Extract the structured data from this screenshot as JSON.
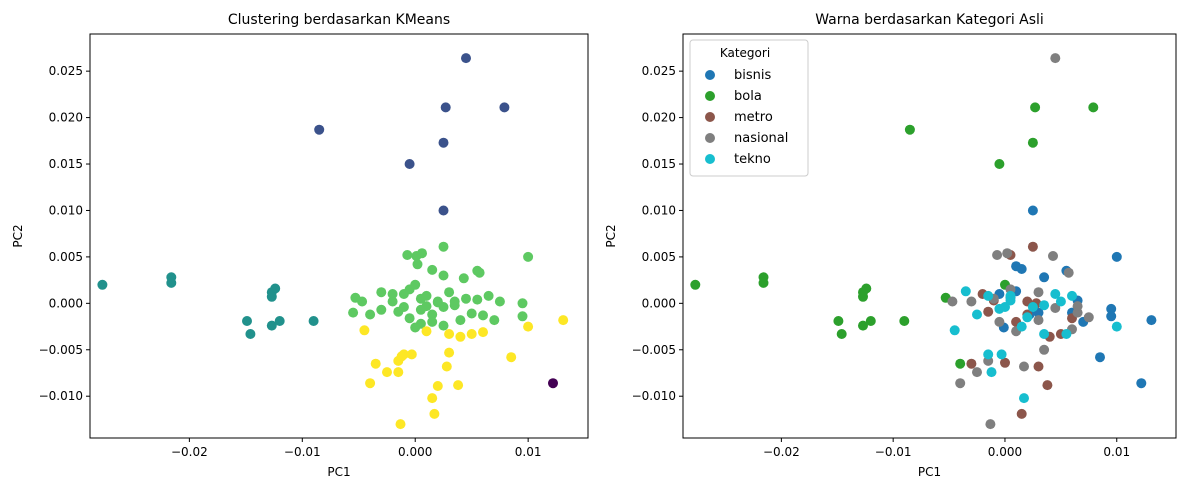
{
  "chart_data": [
    {
      "type": "scatter",
      "title": "Clustering berdasarkan KMeans",
      "xlabel": "PC1",
      "ylabel": "PC2",
      "xlim": [
        -0.0288,
        0.0153
      ],
      "ylim": [
        -0.0145,
        0.029
      ],
      "xticks": [
        -0.02,
        -0.01,
        0.0,
        0.01
      ],
      "xtick_labels": [
        "−0.02",
        "−0.01",
        "0.000",
        "0.01"
      ],
      "yticks": [
        -0.01,
        -0.005,
        0.0,
        0.005,
        0.01,
        0.015,
        0.02,
        0.025
      ],
      "ytick_labels": [
        "−0.010",
        "−0.005",
        "0.000",
        "0.005",
        "0.010",
        "0.015",
        "0.020",
        "0.025"
      ],
      "grid": false,
      "series": [
        {
          "color": "#440154",
          "x": [
            0.0122
          ],
          "y": [
            -0.0086
          ]
        },
        {
          "color": "#3b528b",
          "x": [
            0.0045,
            0.0027,
            0.0079,
            -0.0085,
            0.0025,
            -0.0005,
            0.0025
          ],
          "y": [
            0.0264,
            0.0211,
            0.0211,
            0.0187,
            0.0173,
            0.015,
            0.01
          ]
        },
        {
          "color": "#21918c",
          "x": [
            -0.0277,
            -0.0216,
            -0.0216,
            -0.0124,
            -0.0127,
            -0.0127,
            -0.0149,
            -0.0146,
            -0.0127,
            -0.012,
            -0.009
          ],
          "y": [
            0.002,
            0.0028,
            0.0022,
            0.0016,
            0.0012,
            0.0007,
            -0.0019,
            -0.0033,
            -0.0024,
            -0.0019,
            -0.0019
          ]
        },
        {
          "color": "#5ec962",
          "x": [
            -0.0007,
            0.0001,
            0.0006,
            0.0025,
            0.0002,
            0.0015,
            0.0025,
            0.0043,
            0.0055,
            0.0057,
            0.01,
            -0.0053,
            -0.0047,
            -0.003,
            -0.002,
            -0.001,
            -0.0005,
            0.0,
            0.0005,
            0.001,
            0.002,
            0.003,
            0.0045,
            0.0055,
            0.0065,
            0.0075,
            0.0095,
            -0.0055,
            -0.004,
            -0.003,
            -0.0015,
            -0.0005,
            0.0005,
            0.0015,
            0.0025,
            0.0035,
            0.005,
            0.006,
            0.007,
            0.0095,
            -0.002,
            -0.001,
            0.001,
            0.002,
            0.0035,
            0.0005,
            0.0015,
            0.0,
            0.0025,
            0.004
          ],
          "y": [
            0.0052,
            0.0051,
            0.0054,
            0.0061,
            0.0042,
            0.0036,
            0.003,
            0.0027,
            0.0035,
            0.0033,
            0.005,
            0.0006,
            0.0002,
            0.0012,
            0.001,
            0.001,
            0.0015,
            0.002,
            0.0005,
            0.0008,
            0.0002,
            0.0012,
            0.0005,
            0.0004,
            0.0008,
            0.0002,
            0.0,
            -0.001,
            -0.0012,
            -0.0007,
            -0.0009,
            -0.0016,
            -0.0007,
            -0.0012,
            -0.0004,
            -0.0002,
            -0.0011,
            -0.0013,
            -0.0018,
            -0.0014,
            0.0002,
            -0.0004,
            -0.0003,
            0.0001,
            0.0002,
            -0.0022,
            -0.002,
            -0.0026,
            -0.0024,
            -0.0018
          ]
        },
        {
          "color": "#fde725",
          "x": [
            -0.0045,
            -0.0035,
            -0.004,
            -0.0025,
            -0.0015,
            -0.0015,
            -0.001,
            -0.0012,
            -0.0003,
            0.001,
            0.003,
            0.004,
            0.005,
            0.006,
            0.01,
            0.0131,
            0.0085,
            0.003,
            0.0038,
            0.0028,
            0.002,
            0.0015,
            0.0017,
            -0.0013
          ],
          "y": [
            -0.0029,
            -0.0065,
            -0.0086,
            -0.0074,
            -0.0074,
            -0.0062,
            -0.0055,
            -0.0057,
            -0.0055,
            -0.003,
            -0.0033,
            -0.0036,
            -0.0033,
            -0.0031,
            -0.0025,
            -0.0018,
            -0.0058,
            -0.0053,
            -0.0088,
            -0.0068,
            -0.0089,
            -0.0102,
            -0.0119,
            -0.013
          ]
        }
      ]
    },
    {
      "type": "scatter",
      "title": "Warna berdasarkan Kategori Asli",
      "xlabel": "PC1",
      "ylabel": "PC2",
      "xlim": [
        -0.0288,
        0.0153
      ],
      "ylim": [
        -0.0145,
        0.029
      ],
      "xticks": [
        -0.02,
        -0.01,
        0.0,
        0.01
      ],
      "xtick_labels": [
        "−0.02",
        "−0.01",
        "0.000",
        "0.01"
      ],
      "yticks": [
        -0.01,
        -0.005,
        0.0,
        0.005,
        0.01,
        0.015,
        0.02,
        0.025
      ],
      "ytick_labels": [
        "−0.010",
        "−0.005",
        "0.000",
        "0.005",
        "0.010",
        "0.015",
        "0.020",
        "0.025"
      ],
      "grid": false,
      "legend_title": "Kategori",
      "legend_position": "top-left",
      "series": [
        {
          "name": "bisnis",
          "color": "#1f77b4",
          "x": [
            0.0025,
            0.001,
            0.0015,
            0.0035,
            0.0055,
            0.01,
            0.0095,
            0.0095,
            0.0131,
            0.0122,
            0.0085,
            0.0065,
            0.007,
            0.006,
            0.003,
            -0.0005,
            0.001,
            0.0005,
            -0.0001,
            0.0022
          ],
          "y": [
            0.01,
            0.004,
            0.0037,
            0.0028,
            0.0035,
            0.005,
            -0.0006,
            -0.0014,
            -0.0018,
            -0.0086,
            -0.0058,
            0.0003,
            -0.002,
            -0.001,
            -0.001,
            0.001,
            0.0013,
            0.0006,
            -0.0026,
            -0.0012
          ]
        },
        {
          "name": "bola",
          "color": "#2ca02c",
          "x": [
            0.0027,
            0.0079,
            -0.0085,
            0.0025,
            -0.0005,
            -0.0277,
            -0.0216,
            -0.0216,
            -0.0124,
            -0.0127,
            -0.0127,
            -0.0149,
            -0.0146,
            -0.0127,
            -0.012,
            -0.009,
            -0.0053,
            -0.004,
            0.0
          ],
          "y": [
            0.0211,
            0.0211,
            0.0187,
            0.0173,
            0.015,
            0.002,
            0.0028,
            0.0022,
            0.0016,
            0.0012,
            0.0007,
            -0.0019,
            -0.0033,
            -0.0024,
            -0.0019,
            -0.0019,
            0.0006,
            -0.0065,
            0.002
          ]
        },
        {
          "name": "metro",
          "color": "#8c564b",
          "x": [
            0.0025,
            0.0005,
            -0.002,
            -0.0015,
            -0.001,
            0.002,
            0.003,
            0.004,
            0.005,
            0.006,
            0.002,
            0.0038,
            0.0015,
            -0.003,
            0.001,
            0.0,
            0.0028
          ],
          "y": [
            0.0061,
            0.0052,
            0.001,
            -0.0009,
            0.0003,
            0.0002,
            -0.0068,
            -0.0036,
            -0.0033,
            -0.0016,
            -0.0012,
            -0.0088,
            -0.0119,
            -0.0065,
            -0.002,
            -0.0064,
            0.0
          ],
          "note_ignore": ""
        },
        {
          "name": "nasional",
          "color": "#7f7f7f",
          "x": [
            0.0045,
            -0.0007,
            0.0002,
            0.0043,
            0.0057,
            0.0065,
            -0.0047,
            -0.003,
            -0.001,
            0.0005,
            0.003,
            0.0045,
            0.0065,
            0.0075,
            -0.004,
            -0.0025,
            -0.0013,
            0.0017,
            0.006,
            0.0035,
            -0.0015,
            0.001,
            0.003,
            -0.0005
          ],
          "y": [
            0.0264,
            0.0052,
            0.0054,
            0.0051,
            0.0033,
            -0.001,
            0.0002,
            0.0002,
            0.0005,
            0.0015,
            0.0012,
            -0.0005,
            -0.0003,
            -0.0015,
            -0.0086,
            -0.0074,
            -0.013,
            -0.0068,
            -0.0028,
            -0.005,
            -0.0062,
            -0.003,
            -0.0018,
            -0.002
          ]
        },
        {
          "name": "tekno",
          "color": "#17becf",
          "x": [
            -0.0045,
            -0.0035,
            -0.0025,
            -0.0015,
            0.0,
            0.0005,
            0.0015,
            0.0025,
            0.0035,
            0.0045,
            0.0055,
            0.006,
            0.01,
            -0.0012,
            -0.0003,
            0.0017,
            0.0005,
            -0.0015,
            -0.0005,
            0.0035,
            0.005,
            0.002
          ],
          "y": [
            -0.0029,
            0.0013,
            -0.0012,
            0.0008,
            -0.0004,
            0.0008,
            -0.0025,
            -0.0004,
            -0.0033,
            0.001,
            -0.0033,
            0.0008,
            -0.0025,
            -0.0074,
            -0.0055,
            -0.0102,
            0.0003,
            -0.0055,
            -0.0006,
            -0.0002,
            0.0002,
            -0.0015
          ]
        }
      ]
    }
  ]
}
